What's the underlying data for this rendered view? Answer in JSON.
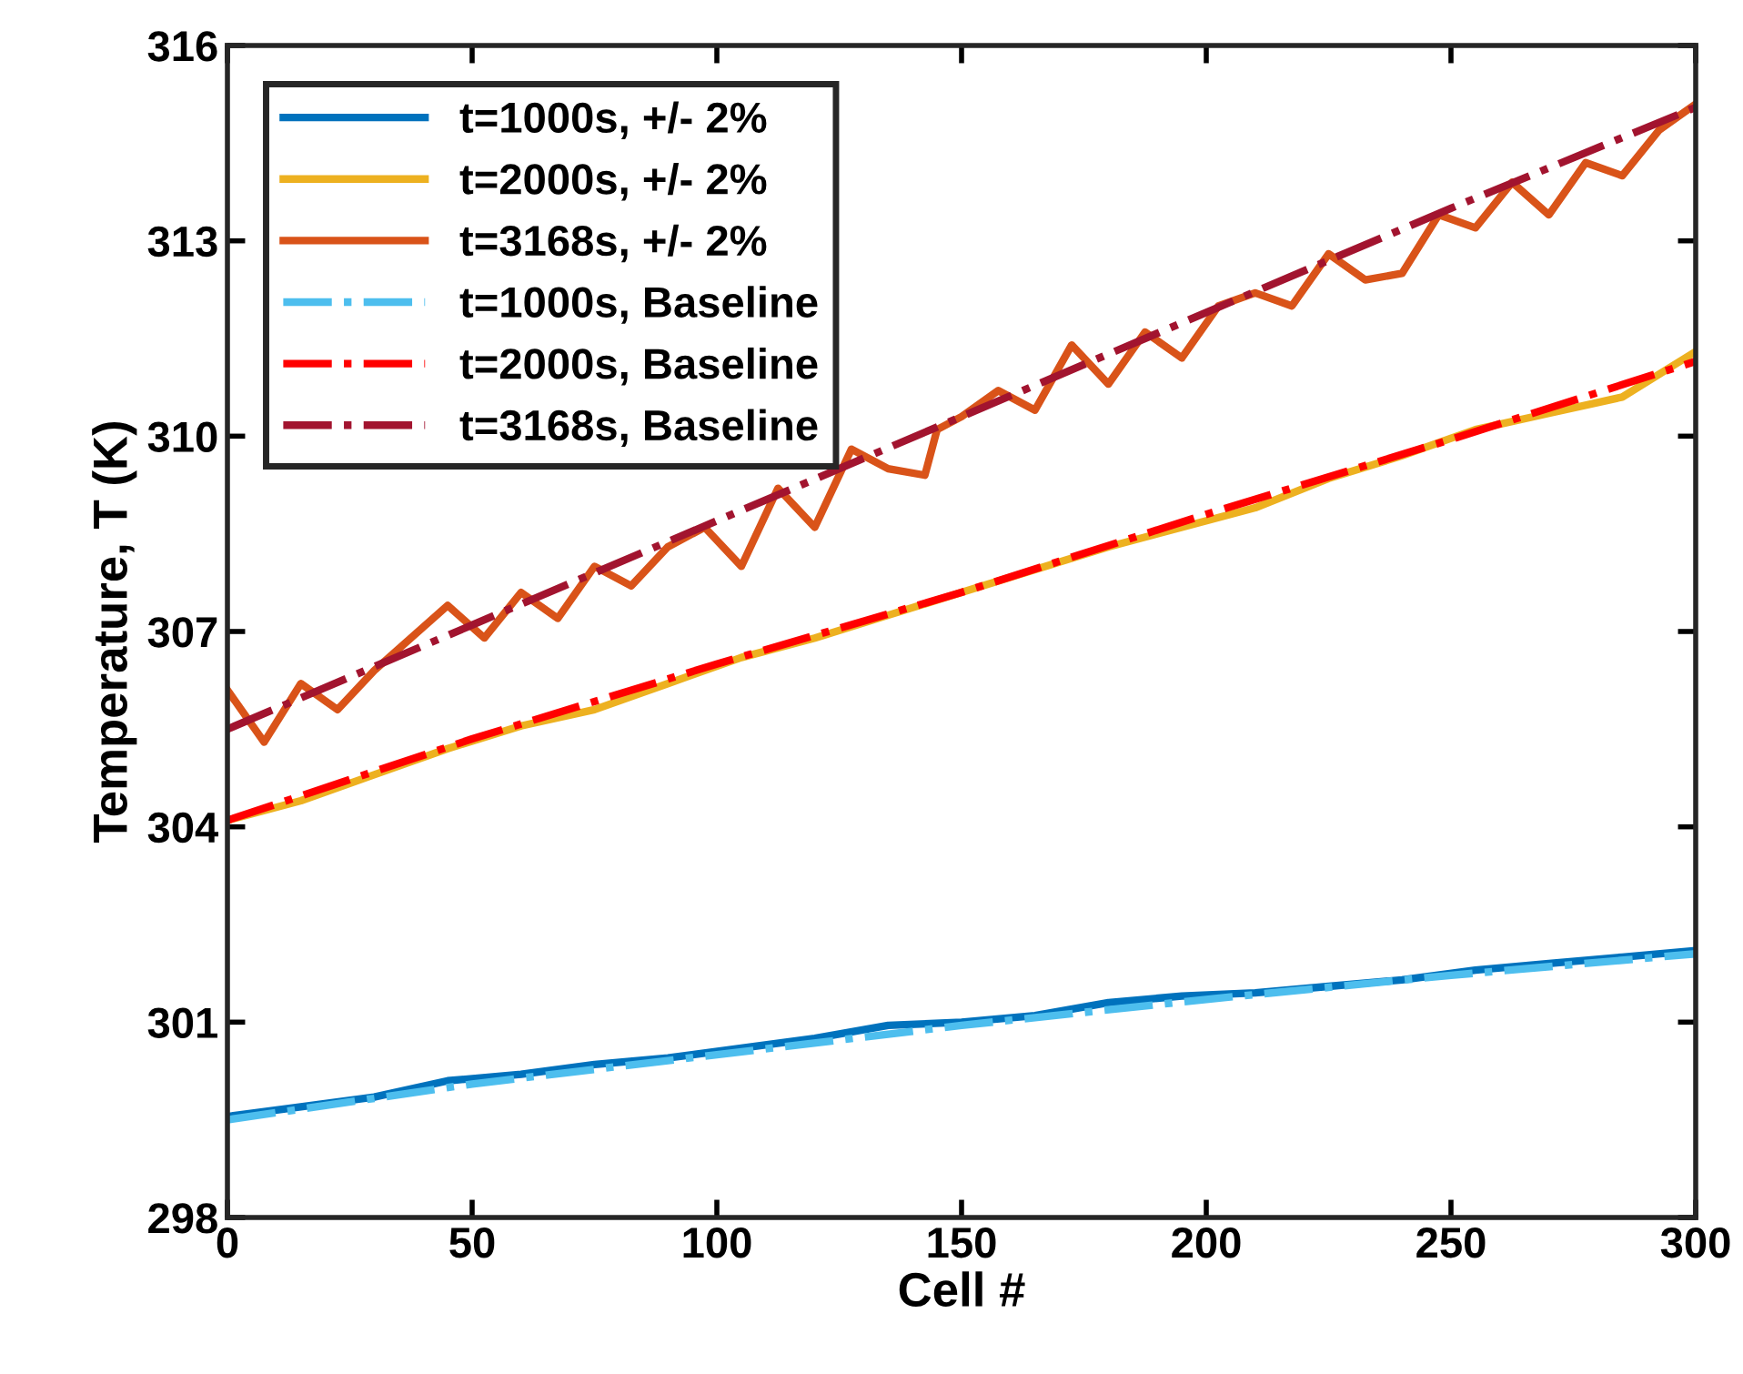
{
  "chart_data": {
    "type": "line",
    "xlabel": "Cell #",
    "ylabel": "Temperature, T (K)",
    "xlim": [
      0,
      300
    ],
    "xticks": [
      0,
      50,
      100,
      150,
      200,
      250,
      300
    ],
    "ylim": [
      298,
      316
    ],
    "yticks": [
      298,
      301,
      304,
      307,
      310,
      313,
      316
    ],
    "grid": false,
    "legend": "top left",
    "series": [
      {
        "name": "t=1000s, +/- 2%",
        "color": "#0072bd",
        "line_style": "solid",
        "x": [
          0,
          15,
          30,
          45,
          60,
          75,
          90,
          105,
          120,
          135,
          150,
          165,
          180,
          195,
          210,
          225,
          240,
          255,
          270,
          285,
          300
        ],
        "values": [
          299.55,
          299.7,
          299.85,
          300.1,
          300.2,
          300.35,
          300.45,
          300.6,
          300.75,
          300.95,
          301.0,
          301.1,
          301.3,
          301.4,
          301.45,
          301.55,
          301.65,
          301.8,
          301.9,
          302.0,
          302.1
        ]
      },
      {
        "name": "t=2000s, +/- 2%",
        "color": "#edb120",
        "line_style": "solid",
        "x": [
          0,
          15,
          30,
          45,
          60,
          75,
          90,
          105,
          120,
          135,
          150,
          165,
          180,
          195,
          210,
          225,
          240,
          255,
          270,
          285,
          300
        ],
        "values": [
          304.1,
          304.4,
          304.8,
          305.2,
          305.55,
          305.8,
          306.2,
          306.6,
          306.9,
          307.25,
          307.6,
          307.95,
          308.3,
          308.6,
          308.9,
          309.35,
          309.7,
          310.1,
          310.35,
          310.6,
          311.3
        ]
      },
      {
        "name": "t=3168s, +/- 2%",
        "color": "#d95319",
        "line_style": "solid",
        "x": [
          0,
          7.5,
          15,
          22.5,
          30,
          37.5,
          45,
          52.5,
          60,
          67.5,
          75,
          82.5,
          90,
          97.5,
          105,
          112.5,
          120,
          127.5,
          135,
          142.5,
          145,
          150,
          157.5,
          165,
          172.5,
          180,
          187.5,
          195,
          202.5,
          210,
          217.5,
          225,
          232.5,
          240,
          247.5,
          255,
          262.5,
          270,
          277.5,
          285,
          292.5,
          300
        ],
        "values": [
          306.1,
          305.3,
          306.2,
          305.8,
          306.4,
          306.9,
          307.4,
          306.9,
          307.6,
          307.2,
          308.0,
          307.7,
          308.3,
          308.6,
          308.0,
          309.2,
          308.6,
          309.8,
          309.5,
          309.4,
          310.1,
          310.3,
          310.7,
          310.4,
          311.4,
          310.8,
          311.6,
          311.2,
          312.0,
          312.2,
          312.0,
          312.8,
          312.4,
          312.5,
          313.4,
          313.2,
          313.9,
          313.4,
          314.2,
          314.0,
          314.7,
          315.1
        ]
      },
      {
        "name": "t=1000s, Baseline",
        "color": "#4dbeee",
        "line_style": "dashdot",
        "x": [
          0,
          50,
          100,
          150,
          200,
          250,
          300
        ],
        "values": [
          299.5,
          300.05,
          300.5,
          300.95,
          301.35,
          301.72,
          302.05
        ]
      },
      {
        "name": "t=2000s, Baseline",
        "color": "#ff0000",
        "line_style": "dashdot",
        "x": [
          0,
          50,
          100,
          150,
          200,
          250,
          300
        ],
        "values": [
          304.1,
          305.35,
          306.5,
          307.6,
          308.8,
          309.95,
          311.15
        ]
      },
      {
        "name": "t=3168s, Baseline",
        "color": "#a2142f",
        "line_style": "dashdot",
        "x": [
          0,
          50,
          100,
          150,
          200,
          250,
          300
        ],
        "values": [
          305.5,
          307.1,
          308.7,
          310.3,
          311.9,
          313.5,
          315.05
        ]
      }
    ]
  }
}
